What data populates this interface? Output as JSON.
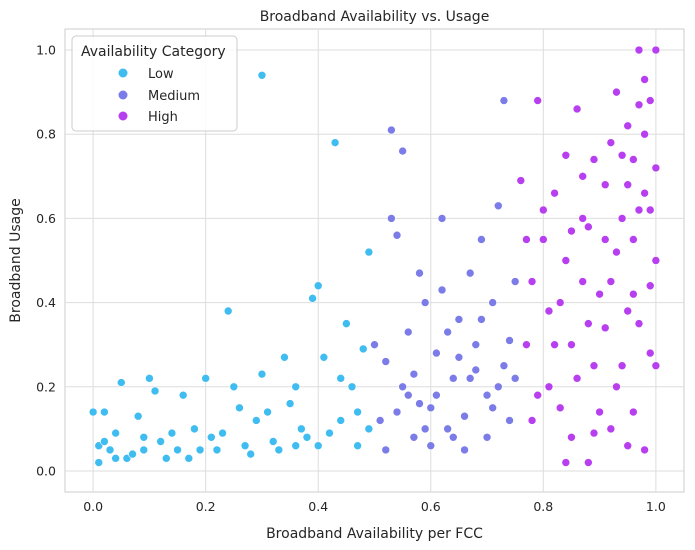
{
  "chart_data": {
    "type": "scatter",
    "title": "Broadband Availability vs. Usage",
    "xlabel": "Broadband Availability per FCC",
    "ylabel": "Broadband Usage",
    "xlim": [
      -0.05,
      1.05
    ],
    "ylim": [
      -0.05,
      1.05
    ],
    "x_ticks": [
      "0.0",
      "0.2",
      "0.4",
      "0.6",
      "0.8",
      "1.0"
    ],
    "y_ticks": [
      "0.0",
      "0.2",
      "0.4",
      "0.6",
      "0.8",
      "1.0"
    ],
    "grid": true,
    "legend": {
      "title": "Availability Category",
      "placement": "top-left",
      "entries": [
        "Low",
        "Medium",
        "High"
      ]
    },
    "series": [
      {
        "name": "Low",
        "color": "#3fbcf0",
        "points": [
          [
            0.0,
            0.14
          ],
          [
            0.01,
            0.02
          ],
          [
            0.01,
            0.06
          ],
          [
            0.02,
            0.14
          ],
          [
            0.03,
            0.05
          ],
          [
            0.04,
            0.09
          ],
          [
            0.05,
            0.21
          ],
          [
            0.06,
            0.03
          ],
          [
            0.08,
            0.13
          ],
          [
            0.09,
            0.08
          ],
          [
            0.1,
            0.22
          ],
          [
            0.11,
            0.19
          ],
          [
            0.13,
            0.03
          ],
          [
            0.15,
            0.05
          ],
          [
            0.16,
            0.18
          ],
          [
            0.18,
            0.1
          ],
          [
            0.2,
            0.22
          ],
          [
            0.21,
            0.08
          ],
          [
            0.23,
            0.09
          ],
          [
            0.24,
            0.38
          ],
          [
            0.25,
            0.2
          ],
          [
            0.27,
            0.06
          ],
          [
            0.29,
            0.12
          ],
          [
            0.3,
            0.94
          ],
          [
            0.3,
            0.23
          ],
          [
            0.32,
            0.07
          ],
          [
            0.34,
            0.27
          ],
          [
            0.36,
            0.2
          ],
          [
            0.38,
            0.08
          ],
          [
            0.39,
            0.41
          ],
          [
            0.4,
            0.44
          ],
          [
            0.41,
            0.27
          ],
          [
            0.42,
            0.09
          ],
          [
            0.43,
            0.78
          ],
          [
            0.44,
            0.12
          ],
          [
            0.45,
            0.35
          ],
          [
            0.46,
            0.2
          ],
          [
            0.47,
            0.06
          ],
          [
            0.48,
            0.29
          ],
          [
            0.49,
            0.52
          ],
          [
            0.02,
            0.07
          ],
          [
            0.07,
            0.04
          ],
          [
            0.12,
            0.07
          ],
          [
            0.17,
            0.03
          ],
          [
            0.22,
            0.05
          ],
          [
            0.26,
            0.15
          ],
          [
            0.28,
            0.04
          ],
          [
            0.31,
            0.14
          ],
          [
            0.33,
            0.05
          ],
          [
            0.35,
            0.16
          ],
          [
            0.37,
            0.1
          ],
          [
            0.4,
            0.06
          ],
          [
            0.44,
            0.22
          ],
          [
            0.47,
            0.14
          ],
          [
            0.49,
            0.1
          ],
          [
            0.19,
            0.05
          ],
          [
            0.14,
            0.09
          ],
          [
            0.09,
            0.05
          ],
          [
            0.04,
            0.03
          ],
          [
            0.36,
            0.06
          ]
        ]
      },
      {
        "name": "Medium",
        "color": "#7c7ce8",
        "points": [
          [
            0.5,
            0.3
          ],
          [
            0.51,
            0.12
          ],
          [
            0.52,
            0.26
          ],
          [
            0.53,
            0.81
          ],
          [
            0.53,
            0.6
          ],
          [
            0.54,
            0.56
          ],
          [
            0.55,
            0.76
          ],
          [
            0.55,
            0.2
          ],
          [
            0.56,
            0.33
          ],
          [
            0.57,
            0.08
          ],
          [
            0.58,
            0.47
          ],
          [
            0.59,
            0.4
          ],
          [
            0.6,
            0.15
          ],
          [
            0.61,
            0.28
          ],
          [
            0.62,
            0.6
          ],
          [
            0.62,
            0.43
          ],
          [
            0.63,
            0.1
          ],
          [
            0.64,
            0.22
          ],
          [
            0.65,
            0.36
          ],
          [
            0.66,
            0.05
          ],
          [
            0.67,
            0.47
          ],
          [
            0.68,
            0.3
          ],
          [
            0.69,
            0.55
          ],
          [
            0.7,
            0.18
          ],
          [
            0.71,
            0.4
          ],
          [
            0.72,
            0.63
          ],
          [
            0.73,
            0.88
          ],
          [
            0.73,
            0.25
          ],
          [
            0.74,
            0.12
          ],
          [
            0.75,
            0.45
          ],
          [
            0.52,
            0.05
          ],
          [
            0.54,
            0.14
          ],
          [
            0.57,
            0.23
          ],
          [
            0.59,
            0.1
          ],
          [
            0.61,
            0.18
          ],
          [
            0.63,
            0.33
          ],
          [
            0.66,
            0.13
          ],
          [
            0.68,
            0.24
          ],
          [
            0.7,
            0.08
          ],
          [
            0.72,
            0.2
          ],
          [
            0.74,
            0.31
          ],
          [
            0.56,
            0.18
          ],
          [
            0.6,
            0.06
          ],
          [
            0.64,
            0.08
          ],
          [
            0.69,
            0.36
          ],
          [
            0.67,
            0.22
          ],
          [
            0.71,
            0.15
          ],
          [
            0.58,
            0.16
          ],
          [
            0.65,
            0.27
          ],
          [
            0.75,
            0.22
          ]
        ]
      },
      {
        "name": "High",
        "color": "#b83ff0",
        "points": [
          [
            0.76,
            0.69
          ],
          [
            0.77,
            0.3
          ],
          [
            0.78,
            0.12
          ],
          [
            0.79,
            0.88
          ],
          [
            0.8,
            0.55
          ],
          [
            0.81,
            0.2
          ],
          [
            0.82,
            0.66
          ],
          [
            0.83,
            0.4
          ],
          [
            0.84,
            0.75
          ],
          [
            0.85,
            0.08
          ],
          [
            0.86,
            0.86
          ],
          [
            0.87,
            0.6
          ],
          [
            0.88,
            0.35
          ],
          [
            0.89,
            0.74
          ],
          [
            0.9,
            0.14
          ],
          [
            0.91,
            0.68
          ],
          [
            0.92,
            0.45
          ],
          [
            0.93,
            0.9
          ],
          [
            0.94,
            0.25
          ],
          [
            0.95,
            0.82
          ],
          [
            0.96,
            0.55
          ],
          [
            0.97,
            1.0
          ],
          [
            0.97,
            0.35
          ],
          [
            0.98,
            0.93
          ],
          [
            0.99,
            0.62
          ],
          [
            1.0,
            1.0
          ],
          [
            1.0,
            0.72
          ],
          [
            0.99,
            0.28
          ],
          [
            0.98,
            0.05
          ],
          [
            0.96,
            0.14
          ],
          [
            0.95,
            0.68
          ],
          [
            0.93,
            0.52
          ],
          [
            0.92,
            0.1
          ],
          [
            0.9,
            0.42
          ],
          [
            0.88,
            0.58
          ],
          [
            0.86,
            0.22
          ],
          [
            0.84,
            0.5
          ],
          [
            0.82,
            0.3
          ],
          [
            0.8,
            0.62
          ],
          [
            0.78,
            0.45
          ],
          [
            0.77,
            0.55
          ],
          [
            0.79,
            0.18
          ],
          [
            0.81,
            0.38
          ],
          [
            0.83,
            0.15
          ],
          [
            0.85,
            0.3
          ],
          [
            0.87,
            0.45
          ],
          [
            0.89,
            0.25
          ],
          [
            0.91,
            0.34
          ],
          [
            0.94,
            0.75
          ],
          [
            0.96,
            0.42
          ],
          [
            0.98,
            0.8
          ],
          [
            1.0,
            0.5
          ],
          [
            0.99,
            0.88
          ],
          [
            0.97,
            0.62
          ],
          [
            0.95,
            0.38
          ],
          [
            0.93,
            0.2
          ],
          [
            0.91,
            0.55
          ],
          [
            0.89,
            0.09
          ],
          [
            0.87,
            0.7
          ],
          [
            0.85,
            0.57
          ],
          [
            0.97,
            0.87
          ],
          [
            0.99,
            0.44
          ],
          [
            0.95,
            0.06
          ],
          [
            0.92,
            0.78
          ],
          [
            0.88,
            0.02
          ],
          [
            0.84,
            0.02
          ],
          [
            0.94,
            0.6
          ],
          [
            1.0,
            0.25
          ],
          [
            0.98,
            0.66
          ],
          [
            0.96,
            0.74
          ]
        ]
      }
    ]
  }
}
